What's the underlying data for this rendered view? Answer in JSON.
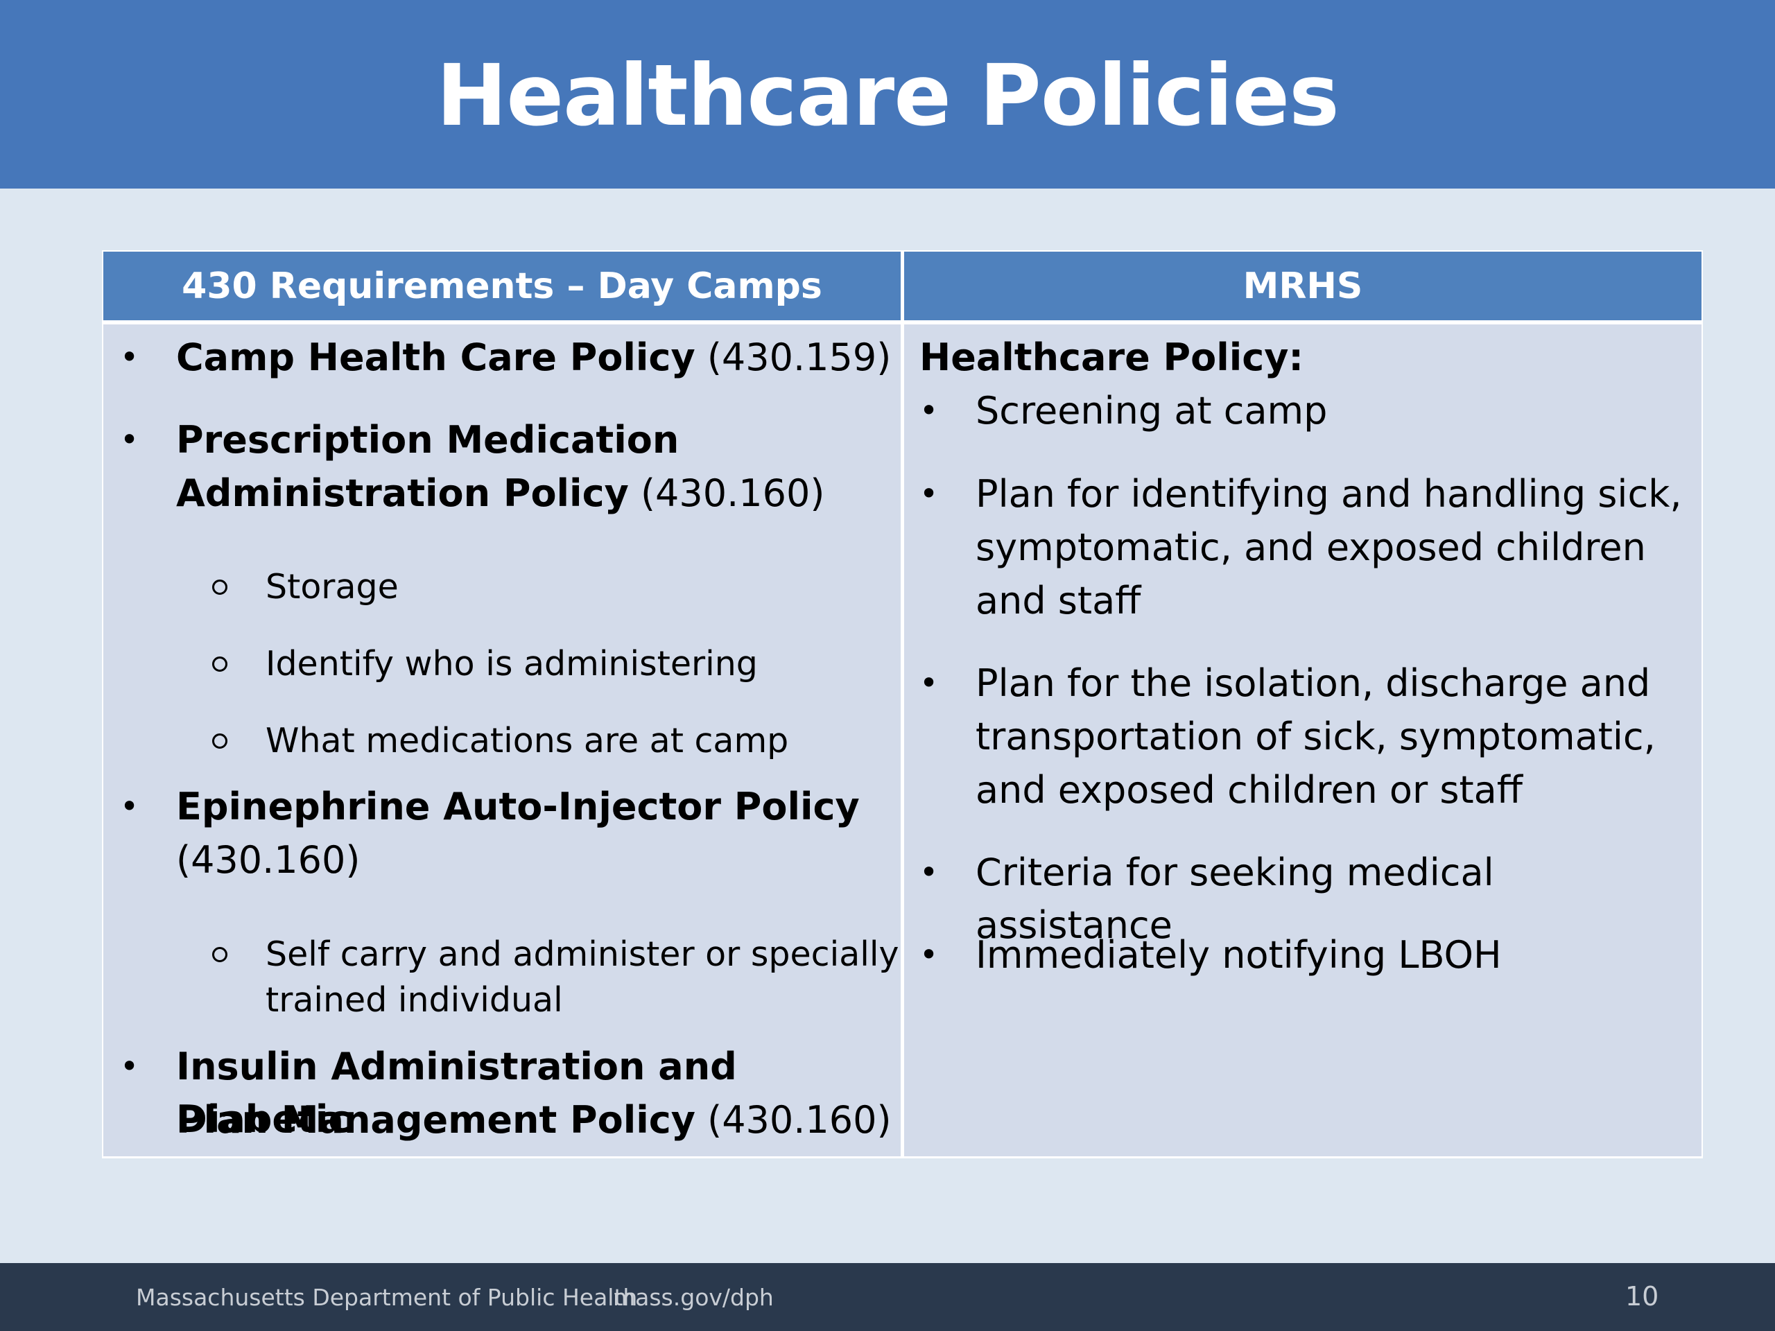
{
  "slide": {
    "title": "Healthcare Policies"
  },
  "table": {
    "headers": [
      "430 Requirements – Day Camps",
      "MRHS"
    ],
    "left": {
      "item1_bold": "Camp Health Care Policy",
      "item1_ref": " (430.159)",
      "item2_bold_line1": "Prescription Medication",
      "item2_bold_line2": "Administration Policy",
      "item2_ref": " (430.160)",
      "item2_subs": [
        "Storage",
        "Identify who is administering",
        "What medications are at camp"
      ],
      "item3_bold": "Epinephrine Auto-Injector Policy",
      "item3_ref": "(430.160)",
      "item3_sub_line1": "Self carry and administer or specially",
      "item3_sub_line2": "trained individual",
      "item4_bold_line1": "Insulin Administration and Diabetic",
      "item4_bold_line2": "Plan Management Policy",
      "item4_ref": " (430.160)"
    },
    "right": {
      "heading": "Healthcare Policy:",
      "b1": "Screening at camp",
      "b2_line1": "Plan for identifying and handling sick,",
      "b2_line2": "symptomatic, and exposed children",
      "b2_line3": "and staff",
      "b3_line1": "Plan for the isolation, discharge and",
      "b3_line2": "transportation of sick, symptomatic,",
      "b3_line3": "and exposed children or staff",
      "b4": "Criteria for seeking medical assistance",
      "b5": "Immediately notifying LBOH"
    }
  },
  "footer": {
    "org": "Massachusetts Department of Public Health",
    "url": "mass.gov/dph",
    "page": "10"
  },
  "colors": {
    "header": "#4677ba",
    "table_header": "#4f81bd",
    "cell": "#d3dbea",
    "footer": "#2a394d"
  }
}
